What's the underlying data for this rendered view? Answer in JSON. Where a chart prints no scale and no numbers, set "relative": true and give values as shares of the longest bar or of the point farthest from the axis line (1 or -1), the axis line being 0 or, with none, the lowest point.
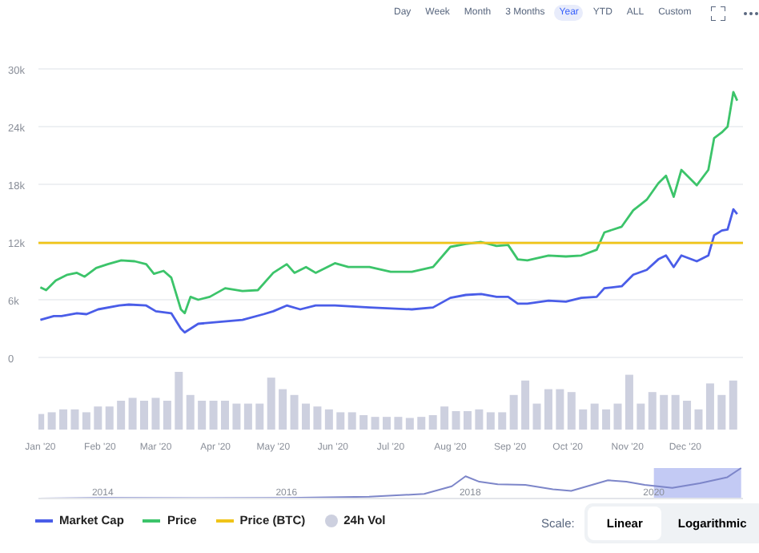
{
  "chart_data": [
    {
      "type": "line",
      "annotations": [
        "Day",
        "Week",
        "Month",
        "3 Months",
        "Year",
        "YTD",
        "ALL",
        "Custom",
        "Scale:",
        "Linear",
        "Logarithmic"
      ],
      "xlim": [
        "2019-12-31",
        "2020-12-31"
      ],
      "ylim": [
        0,
        30000
      ],
      "yticks": [
        {
          "value": 0,
          "label": "0"
        },
        {
          "value": 6000,
          "label": "6k"
        },
        {
          "value": 12000,
          "label": "12k"
        },
        {
          "value": 18000,
          "label": "18k"
        },
        {
          "value": 24000,
          "label": "24k"
        },
        {
          "value": 30000,
          "label": "30k"
        }
      ],
      "tick_labels": "y",
      "grid": "y",
      "legend": "bottom",
      "marker": "none",
      "line_style": "solid",
      "series": [
        {
          "name": "Market Cap",
          "color": "#4a5de8",
          "x": [
            "2020-01-01",
            "2020-01-08",
            "2020-01-12",
            "2020-01-20",
            "2020-01-25",
            "2020-01-31",
            "2020-02-11",
            "2020-02-16",
            "2020-02-25",
            "2020-03-01",
            "2020-03-09",
            "2020-03-14",
            "2020-03-16",
            "2020-03-23",
            "2020-04-03",
            "2020-04-15",
            "2020-04-26",
            "2020-05-01",
            "2020-05-08",
            "2020-05-15",
            "2020-05-23",
            "2020-06-02",
            "2020-06-20",
            "2020-07-12",
            "2020-07-23",
            "2020-08-01",
            "2020-08-09",
            "2020-08-17",
            "2020-08-25",
            "2020-08-31",
            "2020-09-05",
            "2020-09-10",
            "2020-09-21",
            "2020-09-30",
            "2020-10-08",
            "2020-10-16",
            "2020-10-20",
            "2020-10-29",
            "2020-11-04",
            "2020-11-11",
            "2020-11-17",
            "2020-11-21",
            "2020-11-25",
            "2020-11-29",
            "2020-12-07",
            "2020-12-13",
            "2020-12-16",
            "2020-12-20",
            "2020-12-23",
            "2020-12-26",
            "2020-12-28"
          ],
          "values": [
            3900,
            4300,
            4300,
            4600,
            4500,
            5000,
            5400,
            5500,
            5400,
            4800,
            4600,
            3000,
            2600,
            3500,
            3700,
            3900,
            4500,
            4800,
            5400,
            5000,
            5400,
            5400,
            5200,
            5000,
            5200,
            6200,
            6500,
            6600,
            6300,
            6300,
            5600,
            5600,
            5900,
            5800,
            6200,
            6300,
            7200,
            7400,
            8600,
            9100,
            10200,
            10600,
            9400,
            10600,
            10000,
            10600,
            12700,
            13200,
            13300,
            15400,
            14900
          ]
        },
        {
          "name": "Price",
          "color": "#3cc46a",
          "x": [
            "2020-01-01",
            "2020-01-04",
            "2020-01-09",
            "2020-01-15",
            "2020-01-20",
            "2020-01-24",
            "2020-01-30",
            "2020-02-05",
            "2020-02-12",
            "2020-02-19",
            "2020-02-25",
            "2020-02-29",
            "2020-03-05",
            "2020-03-09",
            "2020-03-14",
            "2020-03-16",
            "2020-03-19",
            "2020-03-23",
            "2020-03-29",
            "2020-04-06",
            "2020-04-15",
            "2020-04-23",
            "2020-05-01",
            "2020-05-08",
            "2020-05-12",
            "2020-05-18",
            "2020-05-23",
            "2020-06-02",
            "2020-06-09",
            "2020-06-20",
            "2020-07-01",
            "2020-07-12",
            "2020-07-23",
            "2020-08-01",
            "2020-08-09",
            "2020-08-17",
            "2020-08-25",
            "2020-08-31",
            "2020-09-05",
            "2020-09-10",
            "2020-09-21",
            "2020-09-30",
            "2020-10-08",
            "2020-10-16",
            "2020-10-20",
            "2020-10-29",
            "2020-11-04",
            "2020-11-11",
            "2020-11-17",
            "2020-11-21",
            "2020-11-25",
            "2020-11-29",
            "2020-12-07",
            "2020-12-13",
            "2020-12-16",
            "2020-12-20",
            "2020-12-23",
            "2020-12-26",
            "2020-12-28"
          ],
          "values": [
            7300,
            7000,
            8000,
            8600,
            8800,
            8400,
            9300,
            9700,
            10100,
            10000,
            9700,
            8700,
            9000,
            8300,
            5000,
            4600,
            6300,
            6000,
            6300,
            7200,
            6900,
            7000,
            8800,
            9700,
            8800,
            9400,
            8800,
            9800,
            9400,
            9400,
            8900,
            8900,
            9400,
            11500,
            11800,
            12000,
            11600,
            11700,
            10200,
            10100,
            10600,
            10500,
            10600,
            11200,
            13000,
            13600,
            15300,
            16400,
            18100,
            18900,
            16700,
            19500,
            17900,
            19500,
            22800,
            23400,
            24000,
            27600,
            26700
          ]
        },
        {
          "name": "Price (BTC)",
          "color": "#f0c419",
          "x": [
            "2019-12-31",
            "2020-12-31"
          ],
          "values": [
            11900,
            11900
          ]
        }
      ]
    },
    {
      "type": "bar",
      "relative": true,
      "tick_labels": "x",
      "legend": "bottom",
      "xlim": [
        "2019-12-31",
        "2020-12-31"
      ],
      "xticks": [
        {
          "value": "2020-01-01",
          "label": "Jan '20"
        },
        {
          "value": "2020-02-01",
          "label": "Feb '20"
        },
        {
          "value": "2020-03-01",
          "label": "Mar '20"
        },
        {
          "value": "2020-04-01",
          "label": "Apr '20"
        },
        {
          "value": "2020-05-01",
          "label": "May '20"
        },
        {
          "value": "2020-06-01",
          "label": "Jun '20"
        },
        {
          "value": "2020-07-01",
          "label": "Jul '20"
        },
        {
          "value": "2020-08-01",
          "label": "Aug '20"
        },
        {
          "value": "2020-09-01",
          "label": "Sep '20"
        },
        {
          "value": "2020-10-01",
          "label": "Oct '20"
        },
        {
          "value": "2020-11-01",
          "label": "Nov '20"
        },
        {
          "value": "2020-12-01",
          "label": "Dec '20"
        }
      ],
      "x": [
        "2020-01-01",
        "2020-01-07",
        "2020-01-13",
        "2020-01-19",
        "2020-01-25",
        "2020-01-31",
        "2020-02-06",
        "2020-02-12",
        "2020-02-18",
        "2020-02-24",
        "2020-03-01",
        "2020-03-07",
        "2020-03-13",
        "2020-03-19",
        "2020-03-25",
        "2020-03-31",
        "2020-04-06",
        "2020-04-12",
        "2020-04-18",
        "2020-04-24",
        "2020-04-30",
        "2020-05-06",
        "2020-05-12",
        "2020-05-18",
        "2020-05-24",
        "2020-05-30",
        "2020-06-05",
        "2020-06-11",
        "2020-06-17",
        "2020-06-23",
        "2020-06-29",
        "2020-07-05",
        "2020-07-11",
        "2020-07-17",
        "2020-07-23",
        "2020-07-29",
        "2020-08-04",
        "2020-08-10",
        "2020-08-16",
        "2020-08-22",
        "2020-08-28",
        "2020-09-03",
        "2020-09-09",
        "2020-09-15",
        "2020-09-21",
        "2020-09-27",
        "2020-10-03",
        "2020-10-09",
        "2020-10-15",
        "2020-10-21",
        "2020-10-27",
        "2020-11-02",
        "2020-11-08",
        "2020-11-14",
        "2020-11-20",
        "2020-11-26",
        "2020-12-02",
        "2020-12-08",
        "2020-12-14",
        "2020-12-20",
        "2020-12-26"
      ],
      "series": [
        {
          "name": "24h Vol",
          "color": "#cdd0df",
          "values": [
            0.27,
            0.3,
            0.35,
            0.35,
            0.3,
            0.4,
            0.4,
            0.5,
            0.55,
            0.5,
            0.55,
            0.5,
            1.0,
            0.6,
            0.5,
            0.5,
            0.5,
            0.45,
            0.45,
            0.45,
            0.9,
            0.7,
            0.6,
            0.45,
            0.4,
            0.35,
            0.3,
            0.3,
            0.25,
            0.22,
            0.22,
            0.22,
            0.2,
            0.22,
            0.25,
            0.4,
            0.32,
            0.32,
            0.35,
            0.3,
            0.3,
            0.6,
            0.85,
            0.45,
            0.7,
            0.7,
            0.65,
            0.35,
            0.45,
            0.35,
            0.45,
            0.95,
            0.45,
            0.65,
            0.6,
            0.6,
            0.5,
            0.35,
            0.8,
            0.6,
            0.85
          ]
        }
      ]
    },
    {
      "type": "line",
      "relative": true,
      "marker": "none",
      "xlim": [
        2013.3,
        2020.97
      ],
      "xticks": [
        2014,
        2016,
        2018,
        2020
      ],
      "bands": [
        {
          "axis": "x",
          "from": 2020,
          "to": 2020.95,
          "color": "#aab4f0"
        }
      ],
      "x": [
        2013.3,
        2014,
        2015,
        2016,
        2016.9,
        2017.5,
        2017.8,
        2017.95,
        2018.1,
        2018.3,
        2018.6,
        2018.9,
        2019.1,
        2019.5,
        2019.7,
        2019.9,
        2020.2,
        2020.5,
        2020.8,
        2020.95
      ],
      "series": [
        {
          "color": "#7d86c9",
          "values": [
            0,
            0.02,
            0.01,
            0.02,
            0.06,
            0.15,
            0.4,
            0.73,
            0.55,
            0.47,
            0.45,
            0.3,
            0.25,
            0.6,
            0.55,
            0.45,
            0.35,
            0.5,
            0.7,
            1
          ]
        }
      ]
    }
  ]
}
